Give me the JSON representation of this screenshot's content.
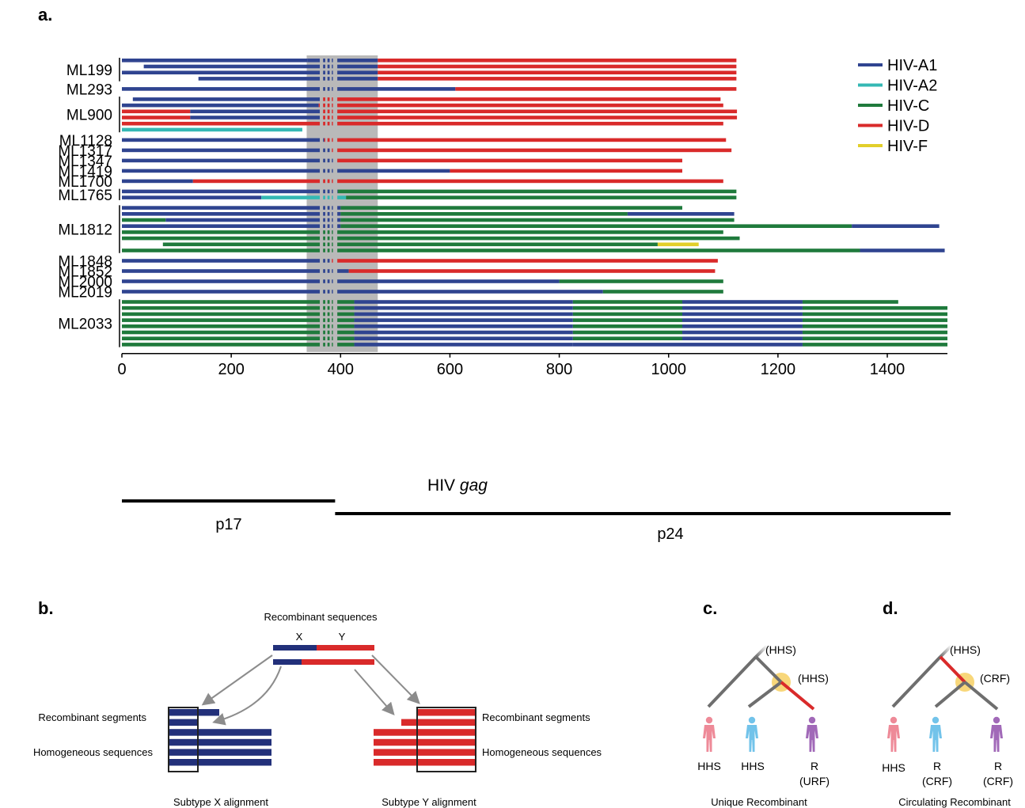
{
  "panels": {
    "a": "a.",
    "b": "b.",
    "c": "c.",
    "d": "d."
  },
  "colors": {
    "A1": "#2f4490",
    "A2": "#35b8b4",
    "C": "#1f7a3c",
    "D": "#d92a2a",
    "F": "#e2cf2a",
    "shade": "#b9b9b9",
    "node": "#f7d063",
    "branch": "#6e6e6e",
    "human_red": "#ee8a98",
    "human_blue": "#72c3ea",
    "human_purple": "#a169b8"
  },
  "legend": [
    {
      "label": "HIV-A1",
      "key": "A1"
    },
    {
      "label": "HIV-A2",
      "key": "A2"
    },
    {
      "label": "HIV-C",
      "key": "C"
    },
    {
      "label": "HIV-D",
      "key": "D"
    },
    {
      "label": "HIV-F",
      "key": "F"
    }
  ],
  "axis": {
    "ticks": [
      "0",
      "200",
      "400",
      "600",
      "800",
      "1000",
      "1200",
      "1400"
    ],
    "xlabel_prefix": "HIV ",
    "xlabel_italic": "gag",
    "xlim": [
      0,
      1510
    ],
    "shaded_region": [
      338,
      468
    ]
  },
  "genes": [
    {
      "label": "p17",
      "range": [
        0,
        390
      ]
    },
    {
      "label": "p24",
      "range": [
        390,
        1520
      ]
    }
  ],
  "chart_data": {
    "type": "bar",
    "title": "",
    "xlabel": "HIV gag",
    "ylabel": "",
    "xlim": [
      0,
      1510
    ],
    "gaps": [
      [
        362,
        368
      ],
      [
        372,
        376
      ],
      [
        380,
        384
      ],
      [
        386,
        394
      ]
    ],
    "groups": [
      {
        "name": "ML199",
        "rows": [
          [
            [
              0,
              340,
              "A1"
            ],
            [
              340,
              468,
              "A1"
            ],
            [
              468,
              1124,
              "D"
            ]
          ],
          [
            [
              40,
              468,
              "A1"
            ],
            [
              468,
              1124,
              "D"
            ]
          ],
          [
            [
              0,
              468,
              "A1"
            ],
            [
              468,
              1124,
              "D"
            ]
          ],
          [
            [
              140,
              468,
              "A1"
            ],
            [
              468,
              1124,
              "D"
            ]
          ]
        ]
      },
      {
        "name": "ML293",
        "rows": [
          [
            [
              0,
              610,
              "A1"
            ],
            [
              610,
              1124,
              "D"
            ]
          ]
        ]
      },
      {
        "name": "ML900",
        "rows": [
          [
            [
              20,
              365,
              "A1"
            ],
            [
              365,
              1095,
              "D"
            ]
          ],
          [
            [
              0,
              360,
              "A1"
            ],
            [
              360,
              1100,
              "D"
            ]
          ],
          [
            [
              0,
              125,
              "D"
            ],
            [
              125,
              365,
              "A1"
            ],
            [
              365,
              1125,
              "D"
            ]
          ],
          [
            [
              0,
              125,
              "D"
            ],
            [
              125,
              365,
              "A1"
            ],
            [
              365,
              1125,
              "D"
            ]
          ],
          [
            [
              0,
              365,
              "D"
            ],
            [
              365,
              1100,
              "D"
            ]
          ],
          [
            [
              0,
              330,
              "A2"
            ]
          ]
        ]
      },
      {
        "name": "ML1128",
        "rows": [
          [
            [
              0,
              370,
              "A1"
            ],
            [
              370,
              1105,
              "D"
            ]
          ]
        ]
      },
      {
        "name": "ML1317",
        "rows": [
          [
            [
              0,
              380,
              "A1"
            ],
            [
              380,
              1115,
              "D"
            ]
          ]
        ]
      },
      {
        "name": "ML1347",
        "rows": [
          [
            [
              0,
              390,
              "A1"
            ],
            [
              390,
              1025,
              "D"
            ]
          ]
        ]
      },
      {
        "name": "ML1419",
        "rows": [
          [
            [
              0,
              600,
              "A1"
            ],
            [
              600,
              1025,
              "D"
            ]
          ]
        ]
      },
      {
        "name": "ML1700",
        "rows": [
          [
            [
              0,
              130,
              "A1"
            ],
            [
              130,
              1100,
              "D"
            ]
          ]
        ]
      },
      {
        "name": "ML1765",
        "rows": [
          [
            [
              0,
              395,
              "A1"
            ],
            [
              395,
              1124,
              "C"
            ]
          ],
          [
            [
              0,
              255,
              "A1"
            ],
            [
              255,
              410,
              "A2"
            ],
            [
              410,
              1124,
              "C"
            ]
          ]
        ]
      },
      {
        "name": "ML1812",
        "rows": [
          [
            [
              0,
              400,
              "A1"
            ],
            [
              400,
              1025,
              "C"
            ]
          ],
          [
            [
              0,
              400,
              "A1"
            ],
            [
              400,
              925,
              "C"
            ],
            [
              925,
              1120,
              "A1"
            ]
          ],
          [
            [
              0,
              80,
              "C"
            ],
            [
              80,
              400,
              "A1"
            ],
            [
              400,
              1120,
              "C"
            ]
          ],
          [
            [
              0,
              400,
              "A1"
            ],
            [
              400,
              1335,
              "C"
            ],
            [
              1335,
              1495,
              "A1"
            ]
          ],
          [
            [
              0,
              1100,
              "C"
            ]
          ],
          [
            [
              0,
              1130,
              "C"
            ]
          ],
          [
            [
              75,
              980,
              "C"
            ],
            [
              980,
              1055,
              "F"
            ]
          ],
          [
            [
              0,
              1350,
              "C"
            ],
            [
              1350,
              1505,
              "A1"
            ]
          ]
        ]
      },
      {
        "name": "ML1848",
        "rows": [
          [
            [
              0,
              380,
              "A1"
            ],
            [
              380,
              1090,
              "D"
            ]
          ]
        ]
      },
      {
        "name": "ML1852",
        "rows": [
          [
            [
              0,
              415,
              "A1"
            ],
            [
              415,
              1085,
              "D"
            ]
          ]
        ]
      },
      {
        "name": "ML2000",
        "rows": [
          [
            [
              0,
              800,
              "A1"
            ],
            [
              800,
              1100,
              "C"
            ]
          ]
        ]
      },
      {
        "name": "ML2019",
        "rows": [
          [
            [
              0,
              880,
              "A1"
            ],
            [
              880,
              1100,
              "C"
            ]
          ]
        ]
      },
      {
        "name": "ML2033",
        "rows": [
          [
            [
              0,
              425,
              "C"
            ],
            [
              425,
              825,
              "A1"
            ],
            [
              825,
              1025,
              "C"
            ],
            [
              1025,
              1245,
              "A1"
            ],
            [
              1245,
              1420,
              "C"
            ]
          ],
          [
            [
              0,
              425,
              "C"
            ],
            [
              425,
              825,
              "A1"
            ],
            [
              825,
              1025,
              "C"
            ],
            [
              1025,
              1245,
              "A1"
            ],
            [
              1245,
              1510,
              "C"
            ]
          ],
          [
            [
              0,
              425,
              "C"
            ],
            [
              425,
              825,
              "A1"
            ],
            [
              825,
              1025,
              "C"
            ],
            [
              1025,
              1245,
              "A1"
            ],
            [
              1245,
              1510,
              "C"
            ]
          ],
          [
            [
              0,
              425,
              "C"
            ],
            [
              425,
              825,
              "A1"
            ],
            [
              825,
              1025,
              "C"
            ],
            [
              1025,
              1245,
              "A1"
            ],
            [
              1245,
              1510,
              "C"
            ]
          ],
          [
            [
              0,
              425,
              "C"
            ],
            [
              425,
              825,
              "A1"
            ],
            [
              825,
              1025,
              "C"
            ],
            [
              1025,
              1245,
              "A1"
            ],
            [
              1245,
              1510,
              "C"
            ]
          ],
          [
            [
              0,
              425,
              "C"
            ],
            [
              425,
              825,
              "A1"
            ],
            [
              825,
              1025,
              "C"
            ],
            [
              1025,
              1245,
              "A1"
            ],
            [
              1245,
              1510,
              "C"
            ]
          ],
          [
            [
              0,
              425,
              "C"
            ],
            [
              425,
              825,
              "A1"
            ],
            [
              825,
              1025,
              "C"
            ],
            [
              1025,
              1245,
              "A1"
            ],
            [
              1245,
              1510,
              "C"
            ]
          ],
          [
            [
              0,
              425,
              "C"
            ],
            [
              425,
              825,
              "A1"
            ],
            [
              825,
              1245,
              "A1"
            ],
            [
              1245,
              1510,
              "C"
            ]
          ]
        ]
      }
    ]
  },
  "panel_b": {
    "recombinant_sequences": "Recombinant sequences",
    "x": "X",
    "y": "Y",
    "left_recombinant_segments": "Recombinant segments",
    "left_homogeneous": "Homogeneous sequences",
    "right_recombinant_segments": "Recombinant segments",
    "right_homogeneous": "Homogeneous sequences",
    "x_alignment": "Subtype X alignment",
    "y_alignment": "Subtype Y alignment"
  },
  "panel_c": {
    "top": "(HHS)",
    "node": "(HHS)",
    "leaf1": "HHS",
    "leaf2": "HHS",
    "leaf3_line1": "R",
    "leaf3_line2": "(URF)",
    "caption": "Unique Recombinant"
  },
  "panel_d": {
    "top": "(HHS)",
    "node": "(CRF)",
    "leaf1": "HHS",
    "leaf2_line1": "R",
    "leaf2_line2": "(CRF)",
    "leaf3_line1": "R",
    "leaf3_line2": "(CRF)",
    "caption": "Circulating Recombinant"
  }
}
